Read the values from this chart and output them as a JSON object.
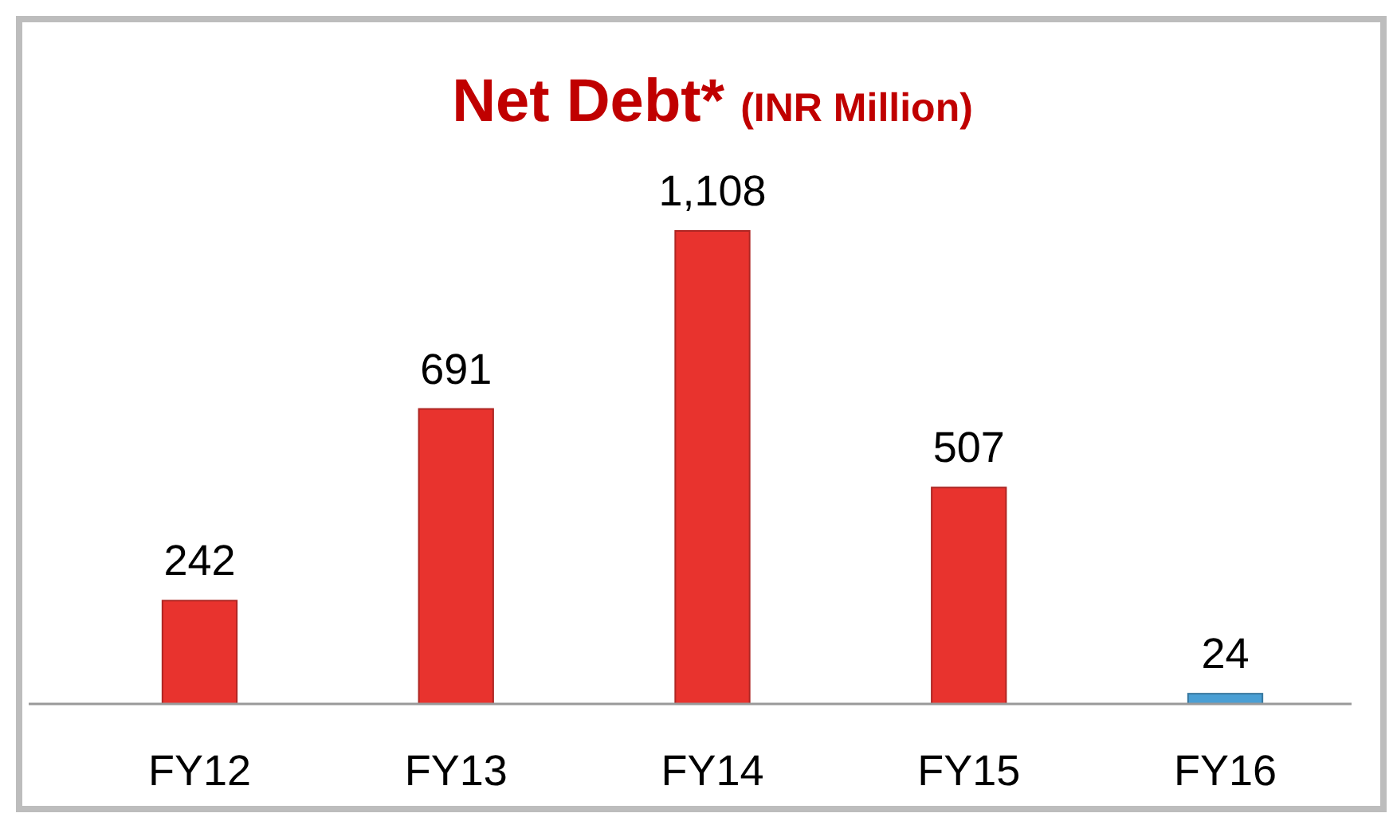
{
  "chart_data": {
    "type": "bar",
    "title": "Net Debt*",
    "subtitle": "(INR Million)",
    "categories": [
      "FY12",
      "FY13",
      "FY14",
      "FY15",
      "FY16"
    ],
    "values": [
      242,
      691,
      1108,
      507,
      24
    ],
    "colors": [
      "#e8332e",
      "#e8332e",
      "#e8332e",
      "#e8332e",
      "#4a9fd4"
    ],
    "value_labels": [
      "242",
      "691",
      "1,108",
      "507",
      "24"
    ]
  }
}
